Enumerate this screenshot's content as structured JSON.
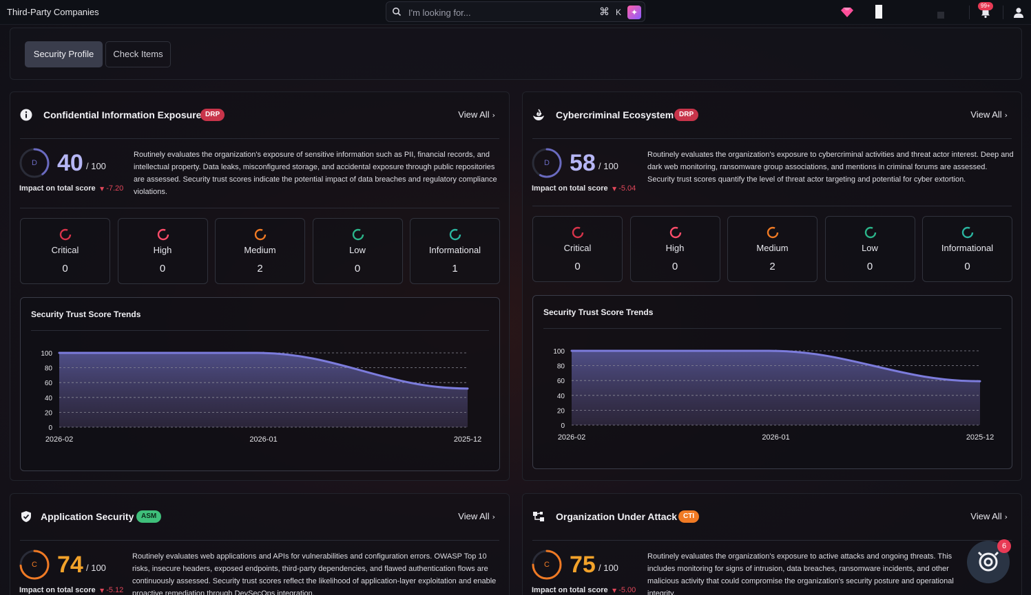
{
  "header": {
    "title": "Third-Party Companies",
    "search_placeholder": "I'm looking for...",
    "shortcut_symbol": "⌘",
    "shortcut_key": "K",
    "ai_icon": "sparkle-icon",
    "notification_badge": "99+"
  },
  "tabs": [
    {
      "label": "Security Profile",
      "active": true
    },
    {
      "label": "Check Items",
      "active": false
    }
  ],
  "cards": [
    {
      "title": "Confidential Information Exposure",
      "badge": "DRP",
      "icon": "info-icon",
      "view_all": "View All",
      "grade": "D",
      "score": "40",
      "score_max": "/ 100",
      "score_color": "#b6b6f5",
      "ring_color": "#6a6ac0",
      "impact_label": "Impact on total score",
      "impact_delta": "-7.20",
      "description": "Routinely evaluates the organization's exposure of sensitive information such as PII, financial records, and intellectual property. Data leaks, misconfigured storage, and accidental exposure through public repositories are assessed. Security trust scores indicate the potential impact of data breaches and regulatory compliance violations.",
      "severities": [
        {
          "label": "Critical",
          "count": "0",
          "color": "#d8344a"
        },
        {
          "label": "High",
          "count": "0",
          "color": "#ff4d6a"
        },
        {
          "label": "Medium",
          "count": "2",
          "color": "#f07a24"
        },
        {
          "label": "Low",
          "count": "0",
          "color": "#2bb58a"
        },
        {
          "label": "Informational",
          "count": "1",
          "color": "#2bb5a0"
        }
      ],
      "trend": {
        "title": "Security Trust Score Trends",
        "chart_data": {
          "type": "area",
          "x": [
            "2026-02",
            "2026-01",
            "2025-12"
          ],
          "yticks": [
            0,
            20,
            40,
            60,
            80,
            100
          ],
          "ylim": [
            0,
            100
          ],
          "values": [
            100,
            100,
            52
          ]
        }
      }
    },
    {
      "title": "Cybercriminal Ecosystem",
      "badge": "DRP",
      "icon": "fire-hand-icon",
      "view_all": "View All",
      "grade": "D",
      "score": "58",
      "score_max": "/ 100",
      "score_color": "#b6b6f5",
      "ring_color": "#6a6ac0",
      "impact_label": "Impact on total score",
      "impact_delta": "-5.04",
      "description": "Routinely evaluates the organization's exposure to cybercriminal activities and threat actor interest. Deep and dark web monitoring, ransomware group associations, and mentions in criminal forums are assessed. Security trust scores quantify the level of threat actor targeting and potential for cyber extortion.",
      "severities": [
        {
          "label": "Critical",
          "count": "0",
          "color": "#d8344a"
        },
        {
          "label": "High",
          "count": "0",
          "color": "#ff4d6a"
        },
        {
          "label": "Medium",
          "count": "2",
          "color": "#f07a24"
        },
        {
          "label": "Low",
          "count": "0",
          "color": "#2bb58a"
        },
        {
          "label": "Informational",
          "count": "0",
          "color": "#2bb5a0"
        }
      ],
      "trend": {
        "title": "Security Trust Score Trends",
        "chart_data": {
          "type": "area",
          "x": [
            "2026-02",
            "2026-01",
            "2025-12"
          ],
          "yticks": [
            0,
            20,
            40,
            60,
            80,
            100
          ],
          "ylim": [
            0,
            100
          ],
          "values": [
            100,
            100,
            59
          ]
        }
      }
    },
    {
      "title": "Application Security",
      "badge": "ASM",
      "icon": "shield-check-icon",
      "view_all": "View All",
      "grade": "C",
      "score": "74",
      "score_max": "/ 100",
      "score_color": "#f2a22a",
      "ring_color": "#f07a24",
      "impact_label": "Impact on total score",
      "impact_delta": "-5.12",
      "description": "Routinely evaluates web applications and APIs for vulnerabilities and configuration errors. OWASP Top 10 risks, insecure headers, exposed endpoints, third-party dependencies, and flawed authentication flows are continuously assessed. Security trust scores reflect the likelihood of application-layer exploitation and enable proactive remediation through DevSecOps integration."
    },
    {
      "title": "Organization Under Attack",
      "badge": "CTI",
      "icon": "network-icon",
      "view_all": "View All",
      "grade": "C",
      "score": "75",
      "score_max": "/ 100",
      "score_color": "#f2a22a",
      "ring_color": "#f07a24",
      "impact_label": "Impact on total score",
      "impact_delta": "-5.00",
      "description": "Routinely evaluates the organization's exposure to active attacks and ongoing threats. This includes monitoring for signs of intrusion, data breaches, ransomware incidents, and other malicious activity that could compromise the organization's security posture and operational integrity."
    }
  ],
  "assistant": {
    "badge": "6",
    "icon": "assistant-icon"
  }
}
